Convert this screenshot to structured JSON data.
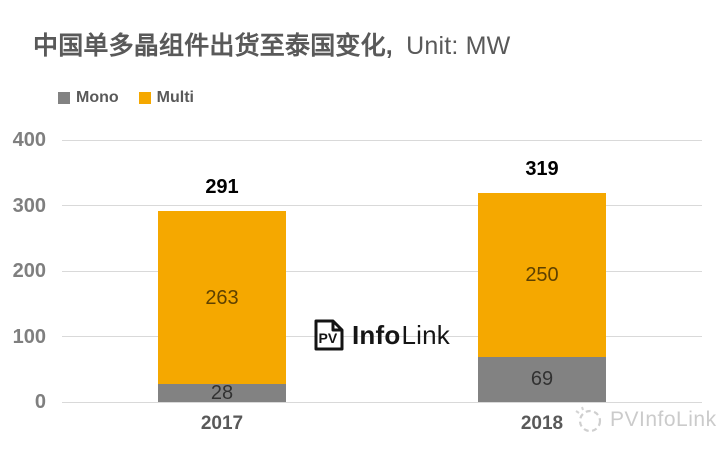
{
  "title": {
    "main": "中国单多晶组件出货至泰国变化,",
    "unit": "Unit: MW"
  },
  "legend": {
    "items": [
      {
        "label": "Mono",
        "color": "#828282"
      },
      {
        "label": "Multi",
        "color": "#F5A800"
      }
    ]
  },
  "chart_data": {
    "type": "bar",
    "subtype": "stacked",
    "title": "中国单多晶组件出货至泰国变化",
    "unit": "MW",
    "categories": [
      "2017",
      "2018"
    ],
    "series": [
      {
        "name": "Mono",
        "color": "#828282",
        "values": [
          28,
          69
        ]
      },
      {
        "name": "Multi",
        "color": "#F5A800",
        "values": [
          263,
          250
        ]
      }
    ],
    "totals": [
      291,
      319
    ],
    "y_ticks": [
      0,
      100,
      200,
      300,
      400
    ],
    "ylim": [
      0,
      400
    ],
    "grid": true,
    "legend_position": "top-left",
    "value_label_color": "rgba(0,0,0,0.62)",
    "grid_color": "#d9d9d9",
    "axis_label_color": "#7f7f7f",
    "total_label_color": "#000000",
    "category_label_color": "#595959"
  },
  "watermark_center": {
    "pv": "PV",
    "info": "Info",
    "link": "Link"
  },
  "watermark_corner": {
    "text": "PVInfoLink"
  }
}
